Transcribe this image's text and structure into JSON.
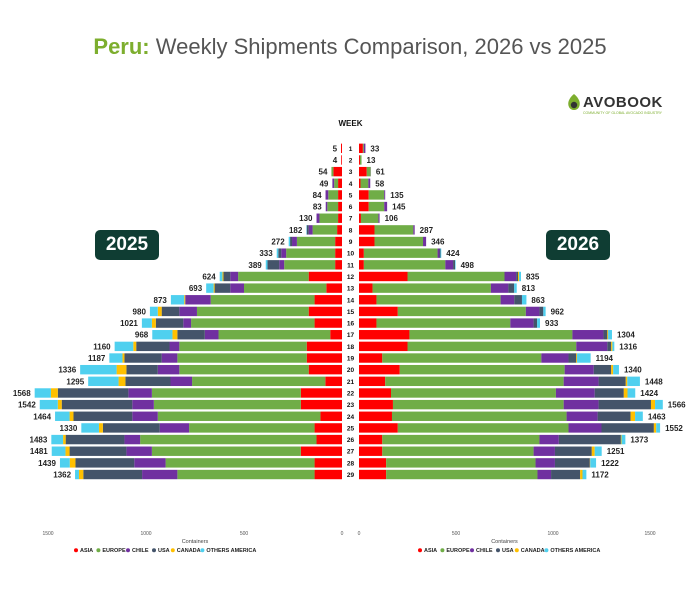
{
  "title": {
    "country": "Peru:",
    "rest": "Weekly Shipments Comparison, 2026 vs 2025"
  },
  "logo": {
    "brand": "AVOBOOK",
    "tagline": "COMMUNITY OF GLOBAL AVOCADO INDUSTRY"
  },
  "badges": {
    "left": "2025",
    "right": "2026"
  },
  "colors": {
    "ASIA": "#ff0000",
    "EUROPE": "#70ad47",
    "CHILE": "#7030a0",
    "USA": "#44546a",
    "CANADA": "#ffc000",
    "OTHERS AMERICA": "#4fd0ef",
    "badge": "#0f3d33",
    "brand_green": "#7dae2e"
  },
  "chart_data": {
    "type": "bar",
    "orientation": "horizontal",
    "layout": "butterfly",
    "center_label": "WEEK",
    "weeks": [
      1,
      2,
      3,
      4,
      5,
      6,
      7,
      8,
      9,
      10,
      11,
      12,
      13,
      14,
      15,
      16,
      17,
      18,
      19,
      20,
      21,
      22,
      23,
      24,
      25,
      26,
      27,
      28,
      29
    ],
    "series_order": [
      "ASIA",
      "EUROPE",
      "CHILE",
      "USA",
      "CANADA",
      "OTHERS AMERICA"
    ],
    "xlabel": "Containers",
    "left": {
      "year": "2025",
      "xlim": [
        1500,
        0
      ],
      "ticks": [
        1500,
        1000,
        500,
        0
      ],
      "totals": [
        5,
        4,
        54,
        49,
        84,
        83,
        130,
        182,
        272,
        333,
        389,
        624,
        693,
        873,
        980,
        1021,
        968,
        1160,
        1187,
        1336,
        1295,
        1568,
        1542,
        1464,
        1330,
        1483,
        1481,
        1439,
        1362
      ],
      "series": [
        {
          "name": "ASIA",
          "values": [
            5,
            4,
            44,
            20,
            20,
            20,
            20,
            25,
            35,
            35,
            35,
            170,
            80,
            140,
            170,
            140,
            60,
            180,
            180,
            170,
            85,
            210,
            210,
            110,
            140,
            130,
            210,
            140,
            140
          ]
        },
        {
          "name": "EUROPE",
          "values": [
            0,
            0,
            10,
            20,
            50,
            55,
            95,
            125,
            195,
            250,
            260,
            360,
            420,
            530,
            570,
            630,
            570,
            650,
            660,
            660,
            680,
            760,
            750,
            830,
            640,
            900,
            760,
            760,
            700
          ]
        },
        {
          "name": "CHILE",
          "values": [
            0,
            0,
            0,
            9,
            14,
            8,
            15,
            20,
            25,
            25,
            25,
            40,
            70,
            130,
            90,
            40,
            70,
            50,
            80,
            110,
            110,
            120,
            110,
            130,
            150,
            80,
            130,
            160,
            180
          ]
        },
        {
          "name": "USA",
          "values": [
            0,
            0,
            0,
            0,
            0,
            0,
            0,
            10,
            10,
            15,
            60,
            35,
            80,
            0,
            90,
            140,
            140,
            170,
            190,
            160,
            230,
            360,
            360,
            300,
            290,
            300,
            290,
            300,
            300
          ]
        },
        {
          "name": "CANADA",
          "values": [
            0,
            0,
            0,
            0,
            0,
            0,
            0,
            0,
            0,
            0,
            0,
            5,
            5,
            5,
            20,
            20,
            25,
            15,
            10,
            50,
            35,
            35,
            20,
            20,
            20,
            13,
            21,
            29,
            22
          ]
        },
        {
          "name": "OTHERS AMERICA",
          "values": [
            0,
            0,
            0,
            0,
            0,
            0,
            0,
            2,
            7,
            8,
            9,
            14,
            38,
            68,
            40,
            51,
            103,
            95,
            67,
            186,
            155,
            83,
            92,
            74,
            90,
            60,
            70,
            50,
            20
          ]
        }
      ]
    },
    "right": {
      "year": "2026",
      "xlim": [
        0,
        1500
      ],
      "ticks": [
        0,
        500,
        1000,
        1500
      ],
      "totals": [
        33,
        13,
        61,
        58,
        135,
        145,
        106,
        287,
        346,
        424,
        498,
        835,
        813,
        863,
        962,
        933,
        1304,
        1316,
        1194,
        1340,
        1448,
        1424,
        1566,
        1463,
        1552,
        1373,
        1251,
        1222,
        1172
      ],
      "series": [
        {
          "name": "ASIA",
          "values": [
            20,
            5,
            40,
            8,
            50,
            50,
            10,
            80,
            80,
            25,
            25,
            250,
            70,
            90,
            200,
            90,
            260,
            250,
            120,
            210,
            135,
            165,
            175,
            170,
            200,
            120,
            120,
            140,
            140
          ]
        },
        {
          "name": "EUROPE",
          "values": [
            5,
            8,
            20,
            40,
            80,
            80,
            90,
            200,
            250,
            380,
            420,
            500,
            610,
            640,
            660,
            690,
            840,
            870,
            820,
            850,
            920,
            850,
            880,
            900,
            880,
            810,
            780,
            770,
            780
          ]
        },
        {
          "name": "CHILE",
          "values": [
            8,
            0,
            1,
            10,
            5,
            15,
            6,
            7,
            16,
            10,
            40,
            60,
            90,
            70,
            70,
            120,
            160,
            160,
            140,
            150,
            180,
            200,
            180,
            160,
            170,
            100,
            110,
            100,
            70
          ]
        },
        {
          "name": "USA",
          "values": [
            0,
            0,
            0,
            0,
            0,
            0,
            0,
            0,
            0,
            5,
            10,
            10,
            30,
            40,
            20,
            18,
            20,
            20,
            40,
            90,
            140,
            150,
            270,
            170,
            270,
            320,
            190,
            180,
            150
          ]
        },
        {
          "name": "CANADA",
          "values": [
            0,
            0,
            0,
            0,
            0,
            0,
            0,
            0,
            0,
            0,
            0,
            5,
            0,
            0,
            0,
            0,
            4,
            6,
            4,
            10,
            8,
            19,
            21,
            23,
            12,
            3,
            15,
            2,
            12
          ]
        },
        {
          "name": "OTHERS AMERICA",
          "values": [
            0,
            0,
            0,
            0,
            0,
            0,
            0,
            0,
            0,
            4,
            3,
            10,
            13,
            23,
            12,
            15,
            20,
            10,
            70,
            30,
            65,
            40,
            40,
            40,
            20,
            20,
            36,
            30,
            20
          ]
        }
      ]
    }
  }
}
